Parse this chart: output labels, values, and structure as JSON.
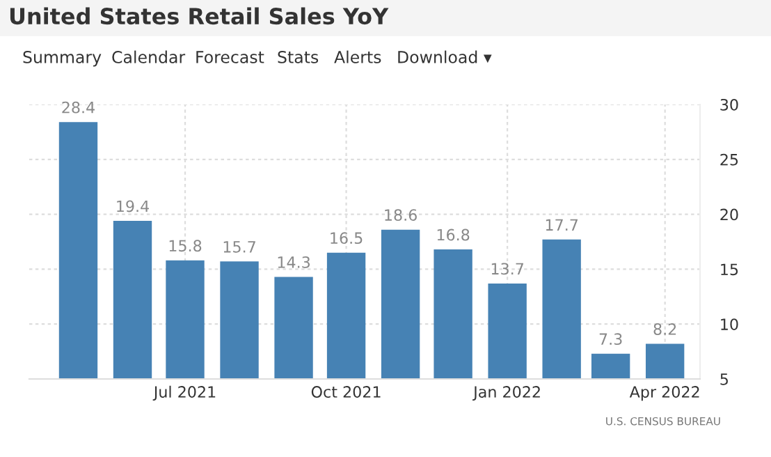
{
  "chart_data": {
    "type": "bar",
    "title": "United States Retail Sales YoY",
    "x": [
      "2021-05",
      "2021-06",
      "2021-07",
      "2021-08",
      "2021-09",
      "2021-10",
      "2021-11",
      "2021-12",
      "2022-01",
      "2022-02",
      "2022-03",
      "2022-04"
    ],
    "values": [
      28.4,
      19.4,
      15.8,
      15.7,
      14.3,
      16.5,
      18.6,
      16.8,
      13.7,
      17.7,
      7.3,
      8.2
    ],
    "color": "#4682b4",
    "data_labels": true,
    "xlim": [
      "2021-04-03",
      "2022-04-21"
    ],
    "xticks": [
      {
        "value": "2021-07",
        "label": "Jul 2021"
      },
      {
        "value": "2021-10",
        "label": "Oct 2021"
      },
      {
        "value": "2022-01",
        "label": "Jan 2022"
      },
      {
        "value": "2022-04",
        "label": "Apr 2022"
      }
    ],
    "ylim": [
      5,
      30
    ],
    "yticks": [
      5,
      10,
      15,
      20,
      25,
      30
    ],
    "grid": true,
    "annotations": [
      "Summary",
      "Calendar",
      "Forecast",
      "Stats",
      "Alerts",
      "Download ▾",
      "U.S. CENSUS BUREAU"
    ]
  }
}
